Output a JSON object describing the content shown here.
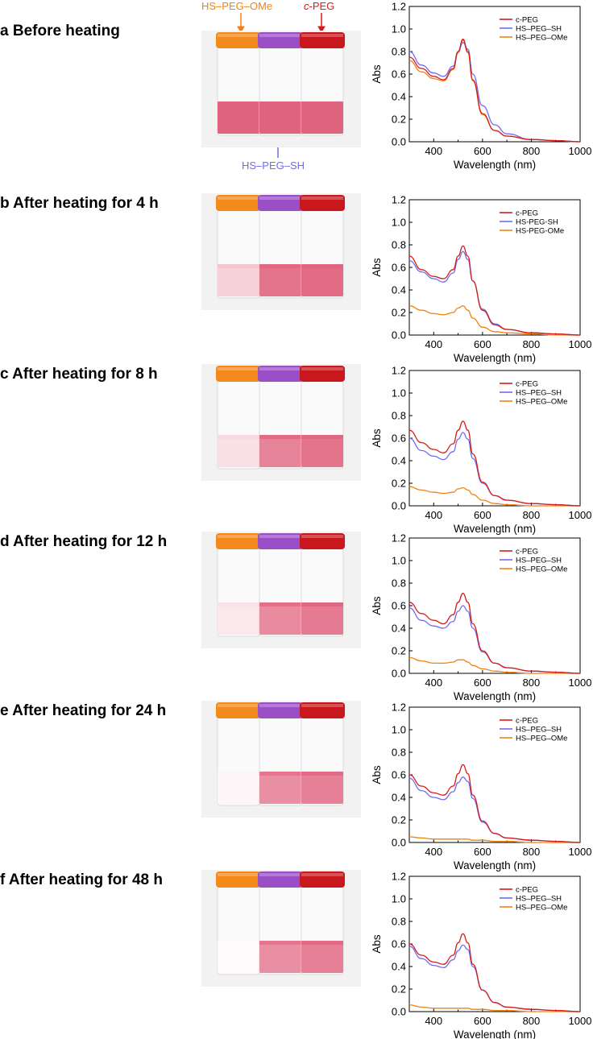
{
  "figure": {
    "labels": {
      "hs_peg_ome": "HS–PEG–OMe",
      "c_prefix": "c",
      "c_suffix": "-PEG",
      "hs_peg_sh": "HS–PEG–SH"
    },
    "colors": {
      "c_peg": "#d81a1a",
      "hs_peg_sh": "#6f6cf2",
      "hs_peg_ome": "#f0820f",
      "cap_orange": "#f28a1c",
      "cap_purple": "#9a4fc7",
      "cap_red": "#c8171d",
      "solution_pink": "#e0647f"
    },
    "panels": [
      {
        "letter": "a",
        "title": "a Before heating",
        "ome_level": 1.0,
        "sh_level": 1.0,
        "c_level": 1.0
      },
      {
        "letter": "b",
        "title": "b After heating for 4 h",
        "ome_level": 0.3,
        "sh_level": 0.9,
        "c_level": 0.95
      },
      {
        "letter": "c",
        "title": "c After heating for 8 h",
        "ome_level": 0.2,
        "sh_level": 0.8,
        "c_level": 0.9
      },
      {
        "letter": "d",
        "title": "d After heating for 12 h",
        "ome_level": 0.15,
        "sh_level": 0.75,
        "c_level": 0.85
      },
      {
        "letter": "e",
        "title": "e After heating for 24 h",
        "ome_level": 0.05,
        "sh_level": 0.72,
        "c_level": 0.82
      },
      {
        "letter": "f",
        "title": "f After heating for 48 h",
        "ome_level": 0.03,
        "sh_level": 0.72,
        "c_level": 0.82
      }
    ]
  },
  "chart_data": [
    {
      "type": "line",
      "xlabel": "Wavelength (nm)",
      "ylabel": "Abs",
      "xlim": [
        300,
        1000
      ],
      "ylim": [
        0,
        1.2
      ],
      "xticks": [
        400,
        600,
        800,
        1000
      ],
      "yticks": [
        "0.0",
        "0.2",
        "0.4",
        "0.6",
        "0.8",
        "1.0",
        "1.2"
      ],
      "grid": false,
      "legend": "top-right",
      "series": [
        {
          "name": "c-PEG",
          "x": [
            300,
            350,
            400,
            440,
            480,
            500,
            520,
            540,
            560,
            600,
            650,
            700,
            800,
            900,
            1000
          ],
          "y": [
            0.75,
            0.65,
            0.58,
            0.55,
            0.65,
            0.8,
            0.91,
            0.8,
            0.55,
            0.25,
            0.1,
            0.05,
            0.02,
            0.01,
            0.0
          ]
        },
        {
          "name": "HS–PEG–SH",
          "x": [
            300,
            350,
            400,
            440,
            480,
            500,
            520,
            540,
            560,
            600,
            650,
            700,
            800,
            900,
            1000
          ],
          "y": [
            0.8,
            0.68,
            0.61,
            0.58,
            0.67,
            0.8,
            0.88,
            0.82,
            0.6,
            0.32,
            0.15,
            0.07,
            0.02,
            0.01,
            0.0
          ]
        },
        {
          "name": "HS–PEG–OMe",
          "x": [
            300,
            350,
            400,
            440,
            480,
            500,
            520,
            540,
            560,
            600,
            650,
            700,
            800,
            900,
            1000
          ],
          "y": [
            0.72,
            0.62,
            0.56,
            0.54,
            0.64,
            0.79,
            0.9,
            0.79,
            0.54,
            0.24,
            0.1,
            0.05,
            0.02,
            0.01,
            0.0
          ]
        }
      ]
    },
    {
      "type": "line",
      "xlabel": "Wavelength (nm)",
      "ylabel": "Abs",
      "xlim": [
        300,
        1000
      ],
      "ylim": [
        0,
        1.2
      ],
      "xticks": [
        400,
        600,
        800,
        1000
      ],
      "yticks": [
        "0.0",
        "0.2",
        "0.4",
        "0.6",
        "0.8",
        "1.0",
        "1.2"
      ],
      "grid": false,
      "legend": "top-right",
      "series": [
        {
          "name": "c-PEG",
          "x": [
            300,
            350,
            400,
            440,
            480,
            500,
            520,
            540,
            560,
            600,
            650,
            700,
            800,
            900,
            1000
          ],
          "y": [
            0.7,
            0.58,
            0.52,
            0.5,
            0.58,
            0.7,
            0.79,
            0.7,
            0.48,
            0.22,
            0.09,
            0.05,
            0.02,
            0.01,
            0.0
          ]
        },
        {
          "name": "HS-PEG-SH",
          "x": [
            300,
            350,
            400,
            440,
            480,
            500,
            520,
            540,
            560,
            600,
            650,
            700,
            800,
            900,
            1000
          ],
          "y": [
            0.66,
            0.56,
            0.5,
            0.47,
            0.55,
            0.67,
            0.74,
            0.67,
            0.48,
            0.23,
            0.1,
            0.05,
            0.02,
            0.01,
            0.0
          ]
        },
        {
          "name": "HS-PEG-OMe",
          "x": [
            300,
            350,
            400,
            440,
            480,
            500,
            520,
            540,
            560,
            600,
            650,
            700,
            800,
            900,
            1000
          ],
          "y": [
            0.26,
            0.22,
            0.19,
            0.18,
            0.2,
            0.24,
            0.26,
            0.22,
            0.15,
            0.07,
            0.03,
            0.02,
            0.01,
            0.0,
            0.0
          ]
        }
      ]
    },
    {
      "type": "line",
      "xlabel": "Wavelength (nm)",
      "ylabel": "Abs",
      "xlim": [
        300,
        1000
      ],
      "ylim": [
        0,
        1.2
      ],
      "xticks": [
        400,
        600,
        800,
        1000
      ],
      "yticks": [
        "0.0",
        "0.2",
        "0.4",
        "0.6",
        "0.8",
        "1.0",
        "1.2"
      ],
      "grid": false,
      "legend": "top-right",
      "series": [
        {
          "name": "c-PEG",
          "x": [
            300,
            350,
            400,
            440,
            480,
            500,
            520,
            540,
            560,
            600,
            650,
            700,
            800,
            900,
            1000
          ],
          "y": [
            0.67,
            0.56,
            0.5,
            0.47,
            0.55,
            0.67,
            0.75,
            0.67,
            0.46,
            0.21,
            0.09,
            0.05,
            0.02,
            0.01,
            0.0
          ]
        },
        {
          "name": "HS–PEG–SH",
          "x": [
            300,
            350,
            400,
            440,
            480,
            500,
            520,
            540,
            560,
            600,
            650,
            700,
            800,
            900,
            1000
          ],
          "y": [
            0.6,
            0.49,
            0.44,
            0.41,
            0.48,
            0.59,
            0.65,
            0.59,
            0.42,
            0.2,
            0.09,
            0.05,
            0.02,
            0.01,
            0.0
          ]
        },
        {
          "name": "HS–PEG–OMe",
          "x": [
            300,
            350,
            400,
            440,
            480,
            500,
            520,
            540,
            560,
            600,
            650,
            700,
            800,
            900,
            1000
          ],
          "y": [
            0.17,
            0.14,
            0.12,
            0.11,
            0.12,
            0.15,
            0.16,
            0.14,
            0.1,
            0.05,
            0.02,
            0.01,
            0.0,
            0.0,
            0.0
          ]
        }
      ]
    },
    {
      "type": "line",
      "xlabel": "Wavelength (nm)",
      "ylabel": "Abs",
      "xlim": [
        300,
        1000
      ],
      "ylim": [
        0,
        1.2
      ],
      "xticks": [
        400,
        600,
        800,
        1000
      ],
      "yticks": [
        "0.0",
        "0.2",
        "0.4",
        "0.6",
        "0.8",
        "1.0",
        "1.2"
      ],
      "grid": false,
      "legend": "top-right",
      "series": [
        {
          "name": "c-PEG",
          "x": [
            300,
            350,
            400,
            440,
            480,
            500,
            520,
            540,
            560,
            600,
            650,
            700,
            800,
            900,
            1000
          ],
          "y": [
            0.63,
            0.53,
            0.47,
            0.44,
            0.52,
            0.63,
            0.71,
            0.63,
            0.44,
            0.2,
            0.09,
            0.05,
            0.02,
            0.01,
            0.0
          ]
        },
        {
          "name": "HS–PEG–SH",
          "x": [
            300,
            350,
            400,
            440,
            480,
            500,
            520,
            540,
            560,
            600,
            650,
            700,
            800,
            900,
            1000
          ],
          "y": [
            0.58,
            0.47,
            0.42,
            0.4,
            0.46,
            0.55,
            0.6,
            0.55,
            0.4,
            0.19,
            0.09,
            0.05,
            0.02,
            0.01,
            0.0
          ]
        },
        {
          "name": "HS–PEG–OMe",
          "x": [
            300,
            350,
            400,
            440,
            480,
            500,
            520,
            540,
            560,
            600,
            650,
            700,
            800,
            900,
            1000
          ],
          "y": [
            0.14,
            0.11,
            0.09,
            0.09,
            0.1,
            0.12,
            0.12,
            0.1,
            0.07,
            0.04,
            0.02,
            0.01,
            0.0,
            0.0,
            0.0
          ]
        }
      ]
    },
    {
      "type": "line",
      "xlabel": "Wavelength (nm)",
      "ylabel": "Abs",
      "xlim": [
        300,
        1000
      ],
      "ylim": [
        0,
        1.2
      ],
      "xticks": [
        400,
        600,
        800,
        1000
      ],
      "yticks": [
        "0.0",
        "0.2",
        "0.4",
        "0.6",
        "0.8",
        "1.0",
        "1.2"
      ],
      "grid": false,
      "legend": "top-right",
      "series": [
        {
          "name": "c-PEG",
          "x": [
            300,
            350,
            400,
            440,
            480,
            500,
            520,
            540,
            560,
            600,
            650,
            700,
            800,
            900,
            1000
          ],
          "y": [
            0.6,
            0.5,
            0.44,
            0.42,
            0.5,
            0.61,
            0.69,
            0.61,
            0.42,
            0.19,
            0.08,
            0.04,
            0.02,
            0.01,
            0.0
          ]
        },
        {
          "name": "HS–PEG–SH",
          "x": [
            300,
            350,
            400,
            440,
            480,
            500,
            520,
            540,
            560,
            600,
            650,
            700,
            800,
            900,
            1000
          ],
          "y": [
            0.57,
            0.46,
            0.4,
            0.38,
            0.45,
            0.53,
            0.58,
            0.54,
            0.39,
            0.18,
            0.08,
            0.04,
            0.02,
            0.01,
            0.0
          ]
        },
        {
          "name": "HS–PEG–OMe",
          "x": [
            300,
            350,
            400,
            440,
            480,
            500,
            520,
            540,
            560,
            600,
            650,
            700,
            800,
            900,
            1000
          ],
          "y": [
            0.05,
            0.04,
            0.03,
            0.03,
            0.03,
            0.03,
            0.03,
            0.03,
            0.02,
            0.02,
            0.01,
            0.01,
            0.0,
            0.0,
            0.0
          ]
        }
      ]
    },
    {
      "type": "line",
      "xlabel": "Wavelength (nm)",
      "ylabel": "Abs",
      "xlim": [
        300,
        1000
      ],
      "ylim": [
        0,
        1.2
      ],
      "xticks": [
        400,
        600,
        800,
        1000
      ],
      "yticks": [
        "0.0",
        "0.2",
        "0.4",
        "0.6",
        "0.8",
        "1.0",
        "1.2"
      ],
      "grid": false,
      "legend": "top-right",
      "series": [
        {
          "name": "c-PEG",
          "x": [
            300,
            350,
            400,
            440,
            480,
            500,
            520,
            540,
            560,
            600,
            650,
            700,
            800,
            900,
            1000
          ],
          "y": [
            0.6,
            0.5,
            0.44,
            0.42,
            0.5,
            0.61,
            0.69,
            0.61,
            0.42,
            0.19,
            0.08,
            0.04,
            0.02,
            0.01,
            0.0
          ]
        },
        {
          "name": "HS–PEG–SH",
          "x": [
            300,
            350,
            400,
            440,
            480,
            500,
            520,
            540,
            560,
            600,
            650,
            700,
            800,
            900,
            1000
          ],
          "y": [
            0.58,
            0.47,
            0.41,
            0.39,
            0.46,
            0.54,
            0.59,
            0.55,
            0.4,
            0.19,
            0.08,
            0.04,
            0.02,
            0.01,
            0.0
          ]
        },
        {
          "name": "HS–PEG–OMe",
          "x": [
            300,
            350,
            400,
            440,
            480,
            500,
            520,
            540,
            560,
            600,
            650,
            700,
            800,
            900,
            1000
          ],
          "y": [
            0.06,
            0.04,
            0.03,
            0.03,
            0.03,
            0.03,
            0.03,
            0.03,
            0.02,
            0.02,
            0.01,
            0.01,
            0.0,
            0.0,
            0.0
          ]
        }
      ]
    }
  ]
}
